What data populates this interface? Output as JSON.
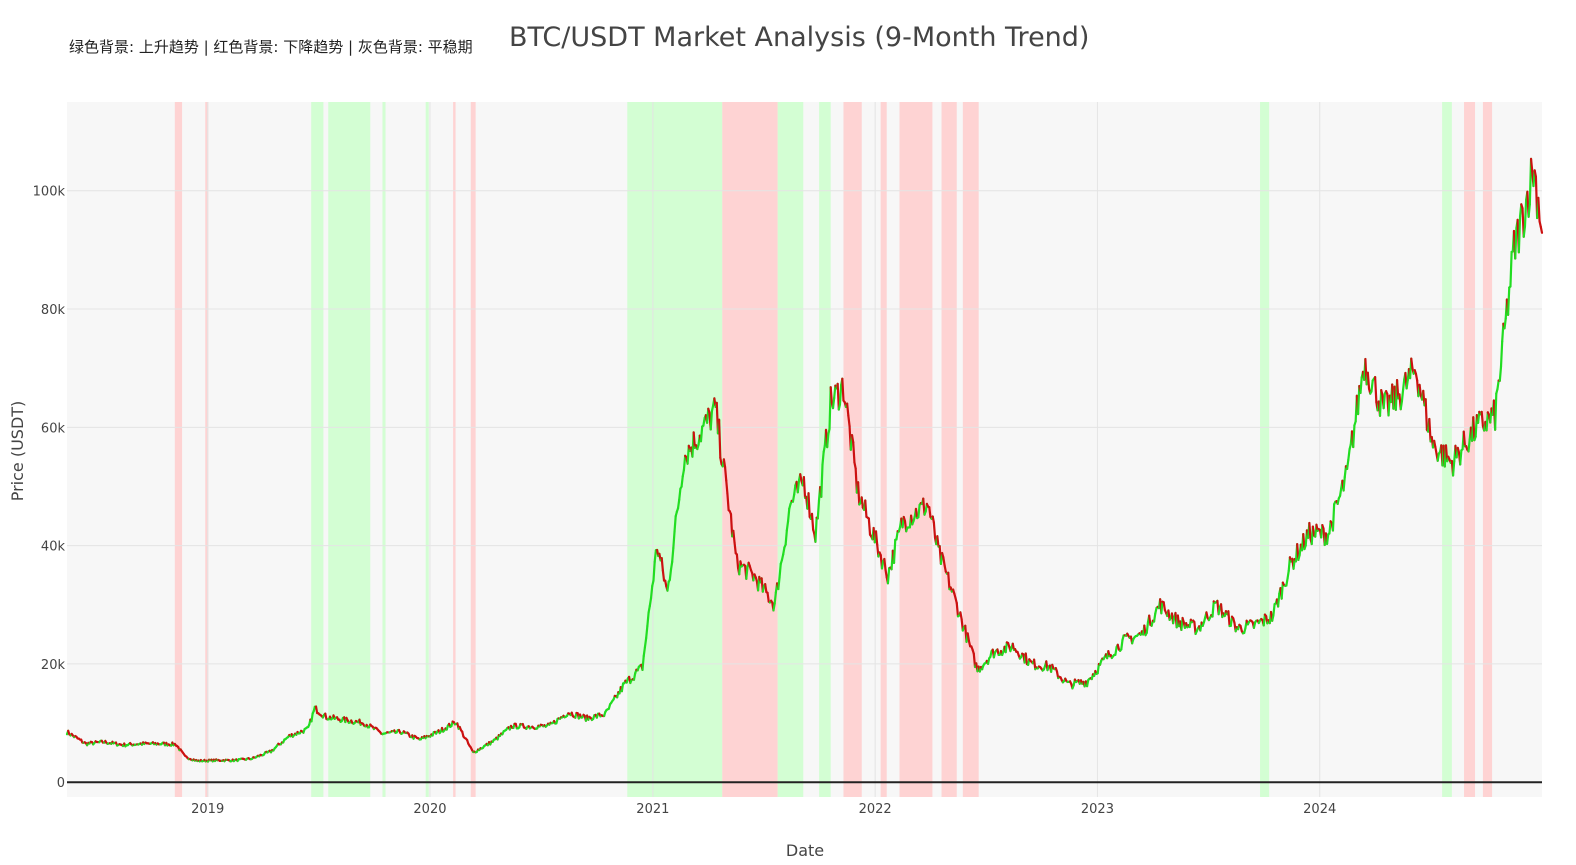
{
  "chart_data": {
    "type": "line",
    "title": "BTC/USDT Market Analysis (9-Month Trend)",
    "subtitle": "绿色背景: 上升趋势 | 红色背景: 下降趋势 | 灰色背景: 平稳期",
    "xlabel": "Date",
    "ylabel": "Price (USDT)",
    "xlim": [
      "2018-05-15",
      "2024-12-31"
    ],
    "ylim": [
      -2500,
      115000
    ],
    "x_ticks": [
      {
        "date": "2019-01-01",
        "label": "2019"
      },
      {
        "date": "2020-01-01",
        "label": "2020"
      },
      {
        "date": "2021-01-01",
        "label": "2021"
      },
      {
        "date": "2022-01-01",
        "label": "2022"
      },
      {
        "date": "2023-01-01",
        "label": "2023"
      },
      {
        "date": "2024-01-01",
        "label": "2024"
      }
    ],
    "y_ticks": [
      {
        "value": 0,
        "label": "0"
      },
      {
        "value": 20000,
        "label": "20k"
      },
      {
        "value": 40000,
        "label": "40k"
      },
      {
        "value": 60000,
        "label": "60k"
      },
      {
        "value": 80000,
        "label": "80k"
      },
      {
        "value": 100000,
        "label": "100k"
      }
    ],
    "grid": true,
    "colors": {
      "up": "#22dd22",
      "down": "#cc1111",
      "uptrend_band": "#ccffcc",
      "downtrend_band": "#ffcccc",
      "plot_bg": "#f7f7f7",
      "zero_line": "#222222"
    },
    "series": [
      {
        "x": [
          "2018-05-15",
          "2018-06-15",
          "2018-07-15",
          "2018-08-15",
          "2018-09-15",
          "2018-10-15",
          "2018-11-10",
          "2018-11-25",
          "2018-12-15",
          "2019-01-15",
          "2019-02-15",
          "2019-03-15",
          "2019-04-15",
          "2019-05-15",
          "2019-06-15",
          "2019-06-26",
          "2019-07-15",
          "2019-08-15",
          "2019-09-15",
          "2019-10-15",
          "2019-11-15",
          "2019-12-15",
          "2020-01-15",
          "2020-02-13",
          "2020-03-12",
          "2020-04-15",
          "2020-05-15",
          "2020-06-15",
          "2020-07-15",
          "2020-08-15",
          "2020-09-15",
          "2020-10-15",
          "2020-11-15",
          "2020-12-15",
          "2021-01-08",
          "2021-01-25",
          "2021-02-21",
          "2021-03-13",
          "2021-04-14",
          "2021-05-19",
          "2021-06-15",
          "2021-07-20",
          "2021-08-15",
          "2021-09-06",
          "2021-09-25",
          "2021-10-20",
          "2021-11-10",
          "2021-12-04",
          "2022-01-22",
          "2022-02-15",
          "2022-03-29",
          "2022-04-15",
          "2022-05-15",
          "2022-06-18",
          "2022-07-15",
          "2022-08-15",
          "2022-09-15",
          "2022-10-15",
          "2022-11-15",
          "2022-12-15",
          "2023-01-15",
          "2023-02-15",
          "2023-03-15",
          "2023-04-14",
          "2023-05-15",
          "2023-06-15",
          "2023-07-15",
          "2023-08-20",
          "2023-09-15",
          "2023-10-15",
          "2023-11-15",
          "2023-12-15",
          "2024-01-15",
          "2024-02-15",
          "2024-03-14",
          "2024-04-15",
          "2024-05-15",
          "2024-06-07",
          "2024-07-05",
          "2024-08-05",
          "2024-09-15",
          "2024-10-15",
          "2024-11-15",
          "2024-12-05",
          "2024-12-17",
          "2024-12-31"
        ],
        "y": [
          8500,
          6500,
          6800,
          6300,
          6500,
          6500,
          6400,
          4300,
          3600,
          3700,
          3700,
          4000,
          5200,
          7800,
          9000,
          12500,
          11000,
          10500,
          10000,
          8200,
          8500,
          7200,
          8500,
          10200,
          5000,
          7000,
          9500,
          9400,
          9500,
          11800,
          10800,
          11500,
          16500,
          19500,
          40000,
          32000,
          55000,
          58000,
          63000,
          37000,
          35000,
          30000,
          47000,
          51000,
          42000,
          64000,
          67000,
          49000,
          35000,
          44000,
          47000,
          39000,
          30000,
          19000,
          22000,
          23000,
          20000,
          19500,
          16500,
          17000,
          21000,
          24000,
          25000,
          30000,
          27000,
          26000,
          30000,
          26000,
          26500,
          28000,
          37000,
          42000,
          42000,
          52000,
          71000,
          63000,
          66000,
          70000,
          57000,
          54000,
          60000,
          62000,
          90000,
          98000,
          104000,
          94000
        ]
      }
    ],
    "trend_bands": [
      {
        "type": "down",
        "start": "2018-11-08",
        "end": "2018-11-20"
      },
      {
        "type": "down",
        "start": "2018-12-28",
        "end": "2019-01-02"
      },
      {
        "type": "up",
        "start": "2019-06-20",
        "end": "2019-07-10"
      },
      {
        "type": "up",
        "start": "2019-07-18",
        "end": "2019-09-25"
      },
      {
        "type": "up",
        "start": "2019-10-15",
        "end": "2019-10-20"
      },
      {
        "type": "up",
        "start": "2019-12-25",
        "end": "2019-12-30"
      },
      {
        "type": "down",
        "start": "2020-02-08",
        "end": "2020-02-12"
      },
      {
        "type": "down",
        "start": "2020-03-08",
        "end": "2020-03-16"
      },
      {
        "type": "up",
        "start": "2020-11-20",
        "end": "2021-04-25"
      },
      {
        "type": "down",
        "start": "2021-04-25",
        "end": "2021-07-25"
      },
      {
        "type": "up",
        "start": "2021-07-25",
        "end": "2021-09-05"
      },
      {
        "type": "up",
        "start": "2021-10-01",
        "end": "2021-10-20"
      },
      {
        "type": "down",
        "start": "2021-11-10",
        "end": "2021-12-10"
      },
      {
        "type": "down",
        "start": "2022-01-10",
        "end": "2022-01-20"
      },
      {
        "type": "down",
        "start": "2022-02-10",
        "end": "2022-04-05"
      },
      {
        "type": "down",
        "start": "2022-04-20",
        "end": "2022-05-15"
      },
      {
        "type": "down",
        "start": "2022-05-25",
        "end": "2022-06-20"
      },
      {
        "type": "up",
        "start": "2023-09-25",
        "end": "2023-10-10"
      },
      {
        "type": "up",
        "start": "2024-07-20",
        "end": "2024-08-05"
      },
      {
        "type": "down",
        "start": "2024-08-25",
        "end": "2024-09-12"
      },
      {
        "type": "down",
        "start": "2024-09-25",
        "end": "2024-10-10"
      }
    ]
  }
}
